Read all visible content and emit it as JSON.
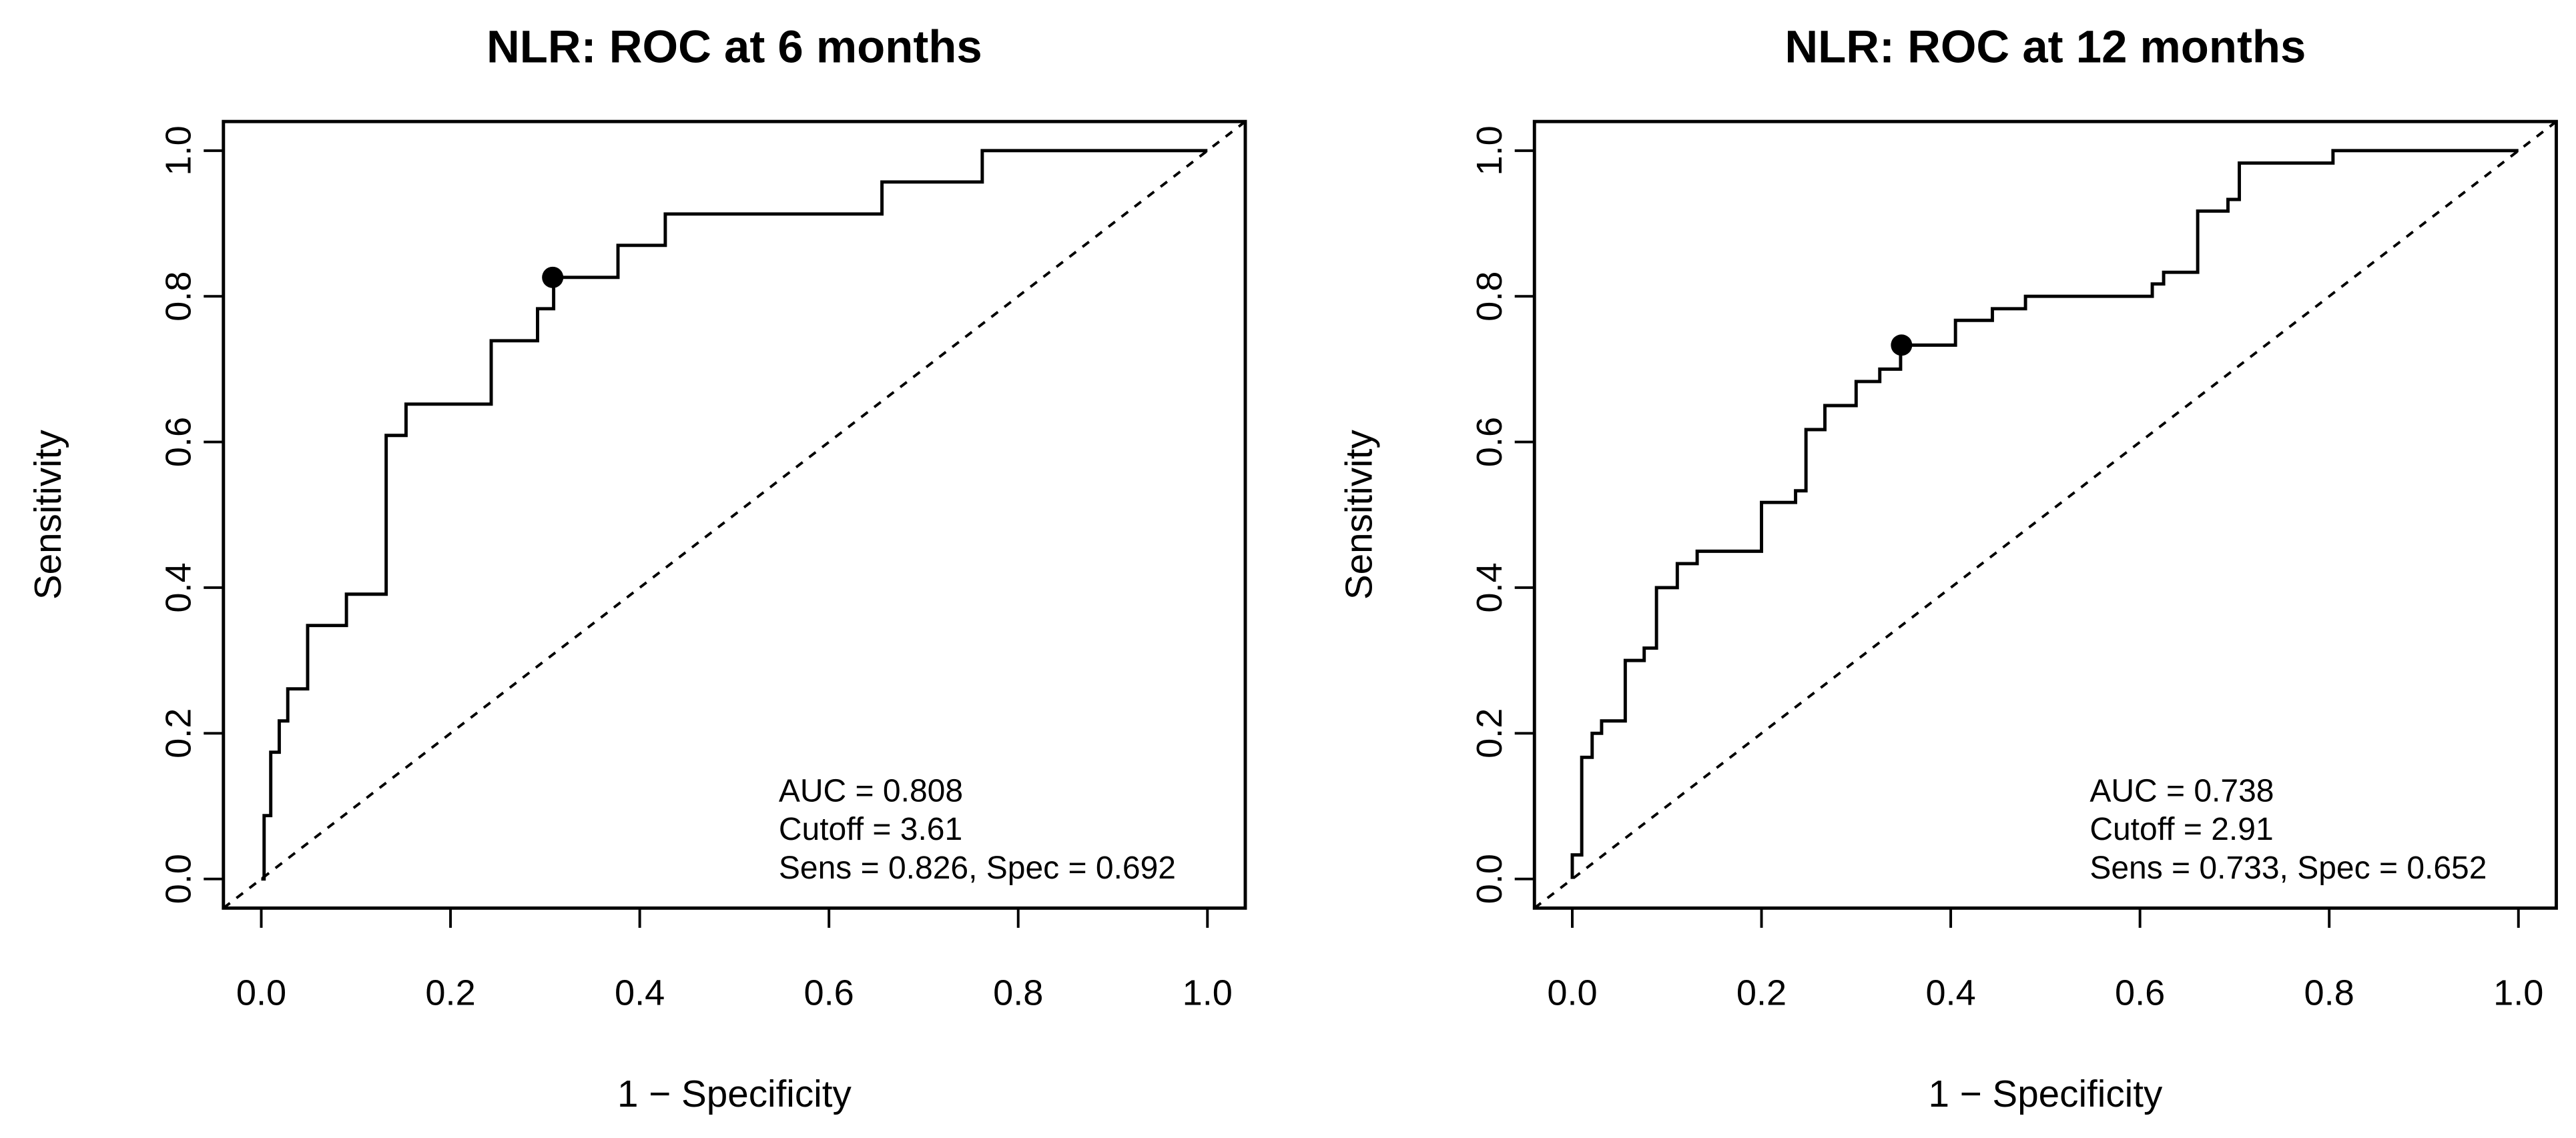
{
  "chart_data": [
    {
      "type": "line",
      "title": "NLR: ROC at 6 months",
      "x_label": "1 − Specificity",
      "y_label": "Sensitivity",
      "xlim": [
        -0.04,
        1.04
      ],
      "ylim": [
        -0.04,
        1.04
      ],
      "xticks": [
        {
          "value": 0,
          "label": "0.0"
        },
        0.2,
        0.4,
        0.6,
        0.8,
        {
          "value": 1,
          "label": "1.0"
        }
      ],
      "yticks": [
        {
          "value": 0,
          "label": "0.0"
        },
        0.2,
        0.4,
        0.6,
        0.8,
        {
          "value": 1,
          "label": "1.0"
        }
      ],
      "color": "#000000",
      "x": [
        0,
        0.003,
        0.003,
        0.01,
        0.01,
        0.019,
        0.019,
        0.028,
        0.028,
        0.049,
        0.049,
        0.09,
        0.09,
        0.132,
        0.132,
        0.153,
        0.153,
        0.243,
        0.243,
        0.292,
        0.292,
        0.309,
        0.309,
        0.377,
        0.377,
        0.427,
        0.427,
        0.656,
        0.656,
        0.762,
        0.762,
        1
      ],
      "values": [
        0,
        0,
        0.087,
        0.087,
        0.174,
        0.174,
        0.217,
        0.217,
        0.261,
        0.261,
        0.348,
        0.348,
        0.391,
        0.391,
        0.609,
        0.609,
        0.652,
        0.652,
        0.739,
        0.739,
        0.783,
        0.783,
        0.826,
        0.826,
        0.87,
        0.87,
        0.913,
        0.913,
        0.957,
        0.957,
        1,
        1
      ],
      "highlight": {
        "x": 0.308,
        "y": 0.826
      },
      "annotations": [
        "AUC = 0.808",
        "Cutoff = 3.61",
        "Sens = 0.826, Spec = 0.692"
      ]
    },
    {
      "type": "line",
      "title": "NLR: ROC at 12 months",
      "x_label": "1 − Specificity",
      "y_label": "Sensitivity",
      "xlim": [
        -0.04,
        1.04
      ],
      "ylim": [
        -0.04,
        1.04
      ],
      "xticks": [
        {
          "value": 0,
          "label": "0.0"
        },
        0.2,
        0.4,
        0.6,
        0.8,
        {
          "value": 1,
          "label": "1.0"
        }
      ],
      "yticks": [
        {
          "value": 0,
          "label": "0.0"
        },
        0.2,
        0.4,
        0.6,
        0.8,
        {
          "value": 1,
          "label": "1.0"
        }
      ],
      "color": "#000000",
      "x": [
        0,
        0,
        0.01,
        0.01,
        0.021,
        0.021,
        0.031,
        0.031,
        0.056,
        0.056,
        0.076,
        0.076,
        0.089,
        0.089,
        0.111,
        0.111,
        0.132,
        0.132,
        0.2,
        0.2,
        0.236,
        0.236,
        0.247,
        0.247,
        0.267,
        0.267,
        0.3,
        0.3,
        0.325,
        0.325,
        0.347,
        0.347,
        0.405,
        0.405,
        0.444,
        0.444,
        0.479,
        0.479,
        0.613,
        0.613,
        0.625,
        0.625,
        0.661,
        0.661,
        0.693,
        0.693,
        0.705,
        0.705,
        0.804,
        0.804,
        1
      ],
      "values": [
        0,
        0.033,
        0.033,
        0.167,
        0.167,
        0.2,
        0.2,
        0.217,
        0.217,
        0.3,
        0.3,
        0.317,
        0.317,
        0.4,
        0.4,
        0.433,
        0.433,
        0.45,
        0.45,
        0.517,
        0.517,
        0.533,
        0.533,
        0.617,
        0.617,
        0.65,
        0.65,
        0.683,
        0.683,
        0.7,
        0.7,
        0.733,
        0.733,
        0.767,
        0.767,
        0.783,
        0.783,
        0.8,
        0.8,
        0.817,
        0.817,
        0.833,
        0.833,
        0.917,
        0.917,
        0.933,
        0.933,
        0.983,
        0.983,
        1,
        1
      ],
      "highlight": {
        "x": 0.348,
        "y": 0.733
      },
      "annotations": [
        "AUC = 0.738",
        "Cutoff = 2.91",
        "Sens = 0.733, Spec = 0.652"
      ]
    }
  ]
}
